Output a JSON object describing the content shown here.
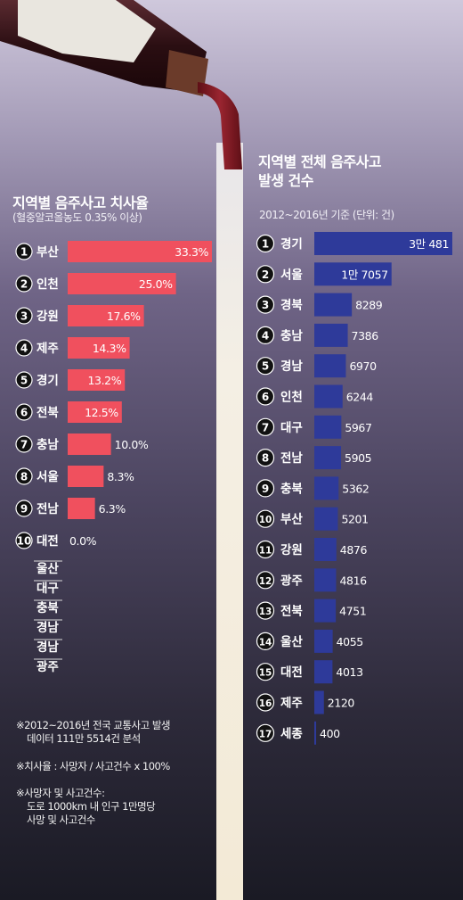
{
  "left": {
    "title": "지역별 음주사고 치사율",
    "subtitle": "(혈중알코올농도 0.35% 이상)",
    "extra_regions": [
      "울산",
      "대구",
      "충북",
      "경남",
      "경남",
      "광주"
    ],
    "notes": [
      "※2012~2016년 전국 교통사고 발생",
      "데이터 111만 5514건 분석",
      "※치사율 : 사망자 / 사고건수 x 100%",
      "※사망자 및 사고건수:",
      "도로 1000km 내 인구 1만명당",
      "사망 및 사고건수"
    ]
  },
  "right": {
    "title_line1": "지역별 전체 음주사고",
    "title_line2": "발생 건수",
    "subtitle": "2012~2016년 기준  (단위: 건)"
  },
  "colors": {
    "left_bar": "#f0505e",
    "right_bar": "#2e3a9a",
    "badge": "#111111",
    "wine": "#7a1a22"
  },
  "chart_data": [
    {
      "type": "bar",
      "orientation": "horizontal",
      "title": "지역별 음주사고 치사율",
      "subtitle": "(혈중알코올농도 0.35% 이상)",
      "ranks": [
        "1",
        "2",
        "3",
        "4",
        "5",
        "6",
        "7",
        "8",
        "9",
        "10"
      ],
      "categories": [
        "부산",
        "인천",
        "강원",
        "제주",
        "경기",
        "전북",
        "충남",
        "서울",
        "전남",
        "대전"
      ],
      "values": [
        33.3,
        25.0,
        17.6,
        14.3,
        13.2,
        12.5,
        10.0,
        8.3,
        6.3,
        0.0
      ],
      "labels": [
        "33.3%",
        "25.0%",
        "17.6%",
        "14.3%",
        "13.2%",
        "12.5%",
        "10.0%",
        "8.3%",
        "6.3%",
        "0.0%"
      ],
      "xlim": [
        0,
        33.3
      ]
    },
    {
      "type": "bar",
      "orientation": "horizontal",
      "title": "지역별 전체 음주사고 발생 건수",
      "subtitle": "2012~2016년 기준  (단위: 건)",
      "ranks": [
        "1",
        "2",
        "3",
        "4",
        "5",
        "6",
        "7",
        "8",
        "9",
        "10",
        "11",
        "12",
        "13",
        "14",
        "15",
        "16",
        "17"
      ],
      "categories": [
        "경기",
        "서울",
        "경북",
        "충남",
        "경남",
        "인천",
        "대구",
        "전남",
        "충북",
        "부산",
        "강원",
        "광주",
        "전북",
        "울산",
        "대전",
        "제주",
        "세종"
      ],
      "values": [
        30481,
        17057,
        8289,
        7386,
        6970,
        6244,
        5967,
        5905,
        5362,
        5201,
        4876,
        4816,
        4751,
        4055,
        4013,
        2120,
        400
      ],
      "labels": [
        "3만 481",
        "1만 7057",
        "8289",
        "7386",
        "6970",
        "6244",
        "5967",
        "5905",
        "5362",
        "5201",
        "4876",
        "4816",
        "4751",
        "4055",
        "4013",
        "2120",
        "400"
      ],
      "xlim": [
        0,
        30481
      ]
    }
  ]
}
